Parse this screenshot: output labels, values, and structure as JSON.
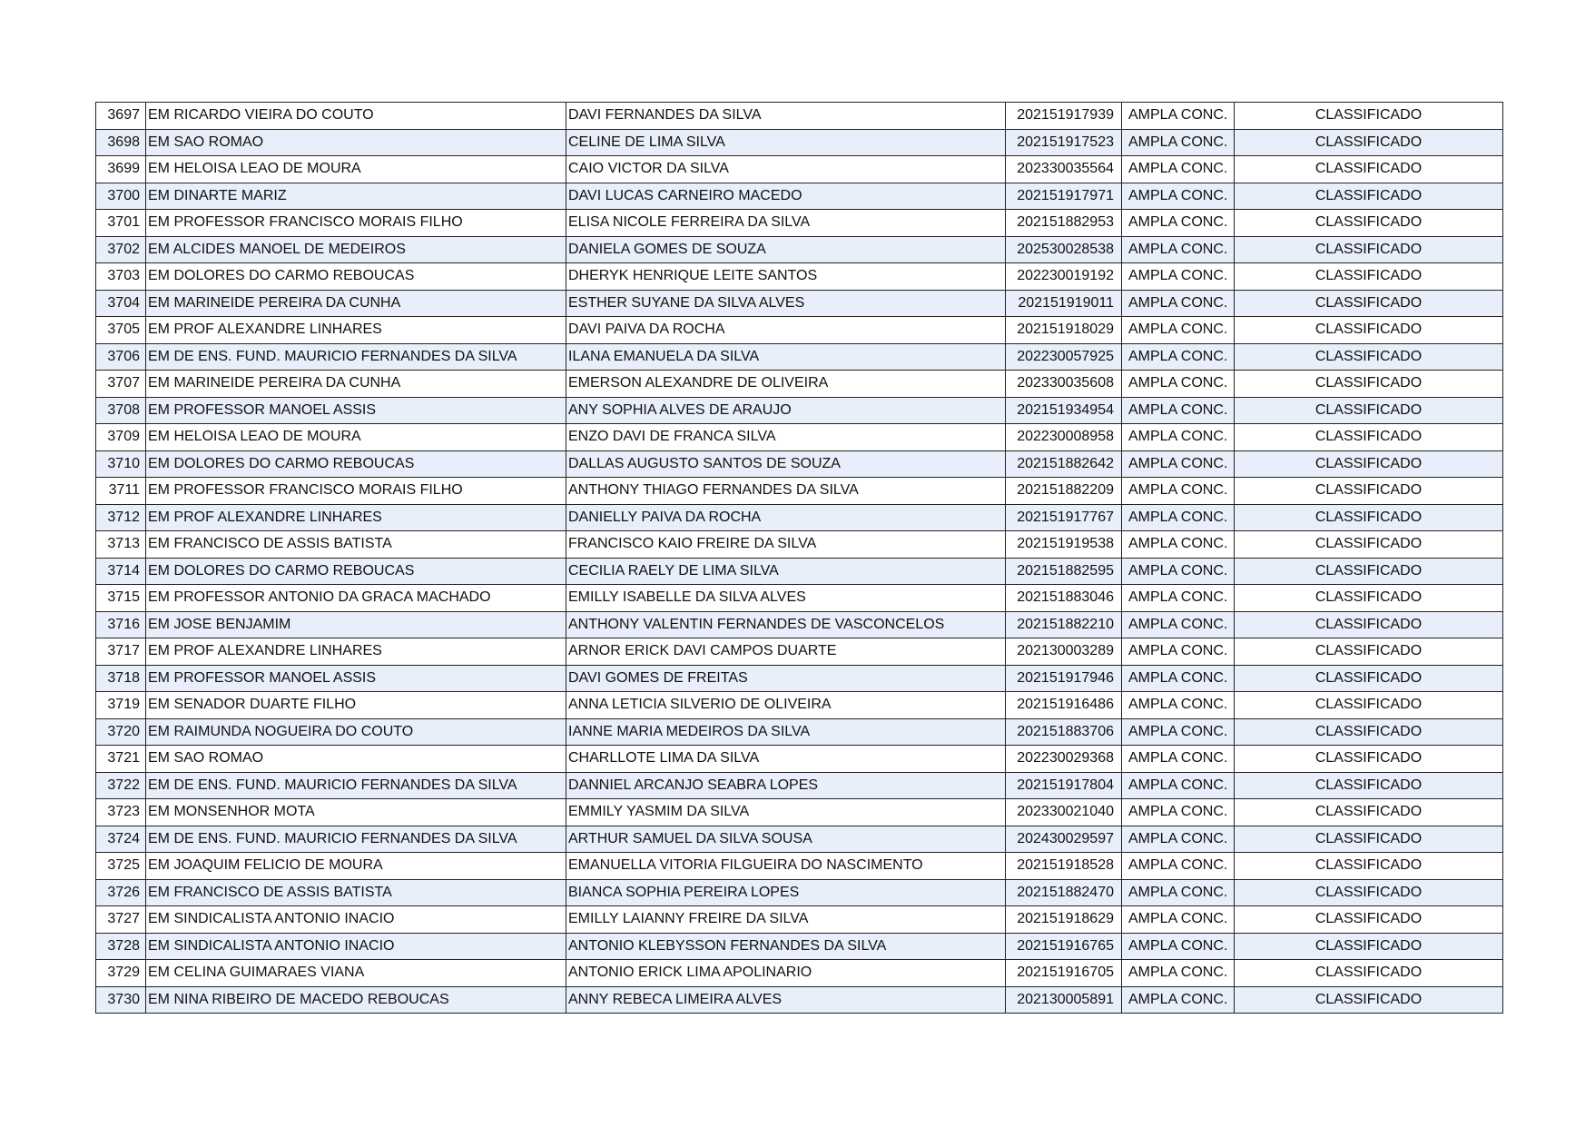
{
  "rows": [
    [
      "3697",
      "EM RICARDO VIEIRA DO COUTO",
      "DAVI FERNANDES DA SILVA",
      "202151917939",
      "AMPLA CONC.",
      "CLASSIFICADO"
    ],
    [
      "3698",
      "EM SAO ROMAO",
      "CELINE DE LIMA SILVA",
      "202151917523",
      "AMPLA CONC.",
      "CLASSIFICADO"
    ],
    [
      "3699",
      "EM HELOISA LEAO DE MOURA",
      "CAIO VICTOR DA SILVA",
      "202330035564",
      "AMPLA CONC.",
      "CLASSIFICADO"
    ],
    [
      "3700",
      "EM DINARTE MARIZ",
      "DAVI LUCAS CARNEIRO MACEDO",
      "202151917971",
      "AMPLA CONC.",
      "CLASSIFICADO"
    ],
    [
      "3701",
      "EM PROFESSOR FRANCISCO MORAIS FILHO",
      "ELISA NICOLE FERREIRA DA SILVA",
      "202151882953",
      "AMPLA CONC.",
      "CLASSIFICADO"
    ],
    [
      "3702",
      "EM ALCIDES MANOEL DE MEDEIROS",
      "DANIELA GOMES DE SOUZA",
      "202530028538",
      "AMPLA CONC.",
      "CLASSIFICADO"
    ],
    [
      "3703",
      "EM DOLORES DO CARMO REBOUCAS",
      "DHERYK HENRIQUE LEITE SANTOS",
      "202230019192",
      "AMPLA CONC.",
      "CLASSIFICADO"
    ],
    [
      "3704",
      "EM MARINEIDE PEREIRA DA CUNHA",
      "ESTHER SUYANE DA SILVA ALVES",
      "202151919011",
      "AMPLA CONC.",
      "CLASSIFICADO"
    ],
    [
      "3705",
      "EM PROF ALEXANDRE LINHARES",
      "DAVI PAIVA DA ROCHA",
      "202151918029",
      "AMPLA CONC.",
      "CLASSIFICADO"
    ],
    [
      "3706",
      "EM DE ENS. FUND. MAURICIO FERNANDES DA SILVA",
      "ILANA EMANUELA DA SILVA",
      "202230057925",
      "AMPLA CONC.",
      "CLASSIFICADO"
    ],
    [
      "3707",
      "EM MARINEIDE PEREIRA DA CUNHA",
      "EMERSON ALEXANDRE DE OLIVEIRA",
      "202330035608",
      "AMPLA CONC.",
      "CLASSIFICADO"
    ],
    [
      "3708",
      "EM PROFESSOR MANOEL ASSIS",
      "ANY SOPHIA ALVES DE ARAUJO",
      "202151934954",
      "AMPLA CONC.",
      "CLASSIFICADO"
    ],
    [
      "3709",
      "EM HELOISA LEAO DE MOURA",
      "ENZO DAVI DE FRANCA SILVA",
      "202230008958",
      "AMPLA CONC.",
      "CLASSIFICADO"
    ],
    [
      "3710",
      "EM DOLORES DO CARMO REBOUCAS",
      "DALLAS AUGUSTO SANTOS DE SOUZA",
      "202151882642",
      "AMPLA CONC.",
      "CLASSIFICADO"
    ],
    [
      "3711",
      "EM PROFESSOR FRANCISCO MORAIS FILHO",
      "ANTHONY THIAGO FERNANDES DA SILVA",
      "202151882209",
      "AMPLA CONC.",
      "CLASSIFICADO"
    ],
    [
      "3712",
      "EM PROF ALEXANDRE LINHARES",
      "DANIELLY PAIVA DA ROCHA",
      "202151917767",
      "AMPLA CONC.",
      "CLASSIFICADO"
    ],
    [
      "3713",
      "EM FRANCISCO DE ASSIS BATISTA",
      "FRANCISCO KAIO FREIRE DA SILVA",
      "202151919538",
      "AMPLA CONC.",
      "CLASSIFICADO"
    ],
    [
      "3714",
      "EM DOLORES DO CARMO REBOUCAS",
      "CECILIA RAELY DE LIMA SILVA",
      "202151882595",
      "AMPLA CONC.",
      "CLASSIFICADO"
    ],
    [
      "3715",
      "EM PROFESSOR ANTONIO DA GRACA MACHADO",
      "EMILLY ISABELLE DA SILVA ALVES",
      "202151883046",
      "AMPLA CONC.",
      "CLASSIFICADO"
    ],
    [
      "3716",
      "EM JOSE BENJAMIM",
      "ANTHONY VALENTIN FERNANDES DE VASCONCELOS",
      "202151882210",
      "AMPLA CONC.",
      "CLASSIFICADO"
    ],
    [
      "3717",
      "EM PROF ALEXANDRE LINHARES",
      "ARNOR ERICK DAVI CAMPOS DUARTE",
      "202130003289",
      "AMPLA CONC.",
      "CLASSIFICADO"
    ],
    [
      "3718",
      "EM PROFESSOR MANOEL ASSIS",
      "DAVI GOMES DE FREITAS",
      "202151917946",
      "AMPLA CONC.",
      "CLASSIFICADO"
    ],
    [
      "3719",
      "EM SENADOR DUARTE FILHO",
      "ANNA LETICIA SILVERIO DE OLIVEIRA",
      "202151916486",
      "AMPLA CONC.",
      "CLASSIFICADO"
    ],
    [
      "3720",
      "EM RAIMUNDA NOGUEIRA DO COUTO",
      "IANNE MARIA MEDEIROS DA SILVA",
      "202151883706",
      "AMPLA CONC.",
      "CLASSIFICADO"
    ],
    [
      "3721",
      "EM SAO ROMAO",
      "CHARLLOTE LIMA DA SILVA",
      "202230029368",
      "AMPLA CONC.",
      "CLASSIFICADO"
    ],
    [
      "3722",
      "EM DE ENS. FUND. MAURICIO FERNANDES DA SILVA",
      "DANNIEL ARCANJO SEABRA LOPES",
      "202151917804",
      "AMPLA CONC.",
      "CLASSIFICADO"
    ],
    [
      "3723",
      "EM MONSENHOR MOTA",
      "EMMILY YASMIM DA SILVA",
      "202330021040",
      "AMPLA CONC.",
      "CLASSIFICADO"
    ],
    [
      "3724",
      "EM DE ENS. FUND. MAURICIO FERNANDES DA SILVA",
      "ARTHUR SAMUEL DA SILVA SOUSA",
      "202430029597",
      "AMPLA CONC.",
      "CLASSIFICADO"
    ],
    [
      "3725",
      "EM JOAQUIM FELICIO DE MOURA",
      "EMANUELLA VITORIA FILGUEIRA DO NASCIMENTO",
      "202151918528",
      "AMPLA CONC.",
      "CLASSIFICADO"
    ],
    [
      "3726",
      "EM FRANCISCO DE ASSIS BATISTA",
      "BIANCA SOPHIA PEREIRA LOPES",
      "202151882470",
      "AMPLA CONC.",
      "CLASSIFICADO"
    ],
    [
      "3727",
      "EM SINDICALISTA ANTONIO INACIO",
      "EMILLY LAIANNY FREIRE DA SILVA",
      "202151918629",
      "AMPLA CONC.",
      "CLASSIFICADO"
    ],
    [
      "3728",
      "EM SINDICALISTA ANTONIO INACIO",
      "ANTONIO KLEBYSSON FERNANDES DA SILVA",
      "202151916765",
      "AMPLA CONC.",
      "CLASSIFICADO"
    ],
    [
      "3729",
      "EM CELINA GUIMARAES VIANA",
      "ANTONIO ERICK LIMA APOLINARIO",
      "202151916705",
      "AMPLA CONC.",
      "CLASSIFICADO"
    ],
    [
      "3730",
      "EM NINA RIBEIRO DE MACEDO REBOUCAS",
      "ANNY REBECA LIMEIRA ALVES",
      "202130005891",
      "AMPLA CONC.",
      "CLASSIFICADO"
    ]
  ]
}
